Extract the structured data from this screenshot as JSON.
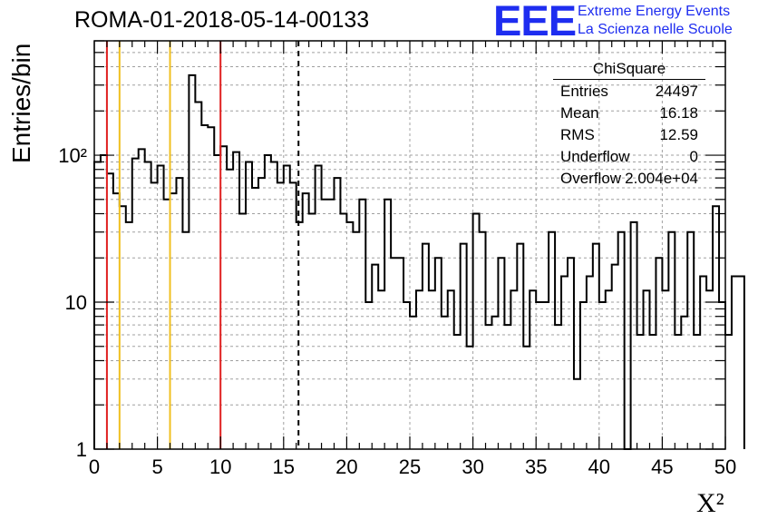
{
  "title": "ROMA-01-2018-05-14-00133",
  "logo": {
    "mark": "EEE",
    "line1": "Extreme Energy Events",
    "line2": "La Scienza nelle Scuole"
  },
  "stats_box": {
    "title": "ChiSquare",
    "rows": [
      {
        "key": "Entries",
        "value": "24497"
      },
      {
        "key": "Mean",
        "value": "16.18"
      },
      {
        "key": "RMS",
        "value": "12.59"
      },
      {
        "key": "Underflow",
        "value": "0"
      },
      {
        "key": "Overflow",
        "value": "2.004e+04"
      }
    ]
  },
  "colors": {
    "histogram": "#000000",
    "red_lines": "#e02020",
    "yellow_lines": "#f0c020",
    "mean_line": "#000000",
    "logo": "#1e2df0",
    "grid": "#a0a0a0"
  },
  "chart_data": {
    "type": "histogram",
    "xlabel": "X²",
    "ylabel": "Entries/bin",
    "xlim": [
      0,
      50
    ],
    "ylim": [
      1,
      600
    ],
    "yscale": "log",
    "grid": true,
    "bin_width": 0.5,
    "bin_start": 0,
    "xticks": [
      0,
      5,
      10,
      15,
      20,
      25,
      30,
      35,
      40,
      45,
      50
    ],
    "xtick_labels": [
      "0",
      "5",
      "10",
      "15",
      "20",
      "25",
      "30",
      "35",
      "40",
      "45",
      "50"
    ],
    "yticks": [
      1,
      10,
      100
    ],
    "ytick_labels": [
      "1",
      "10",
      "10²"
    ],
    "values": [
      90,
      100,
      75,
      55,
      45,
      35,
      95,
      110,
      90,
      65,
      85,
      50,
      55,
      70,
      30,
      350,
      230,
      160,
      155,
      100,
      115,
      80,
      105,
      40,
      90,
      60,
      70,
      100,
      90,
      65,
      85,
      65,
      35,
      55,
      40,
      85,
      50,
      50,
      70,
      40,
      35,
      30,
      50,
      10,
      18,
      12,
      50,
      20,
      20,
      10,
      8,
      12,
      25,
      12,
      20,
      8,
      12,
      6,
      25,
      5,
      40,
      30,
      7,
      8,
      20,
      7,
      12,
      25,
      5,
      12,
      10,
      10,
      30,
      7,
      15,
      20,
      3,
      10,
      15,
      25,
      10,
      12,
      18,
      30,
      1,
      35,
      6,
      12,
      6,
      20,
      12,
      30,
      6,
      8,
      30,
      6,
      15,
      12,
      45,
      10,
      6,
      15,
      15
    ],
    "vlines": [
      {
        "x": 1,
        "style": "red"
      },
      {
        "x": 2,
        "style": "yellow"
      },
      {
        "x": 6,
        "style": "yellow"
      },
      {
        "x": 10,
        "style": "red"
      },
      {
        "x": 16.18,
        "style": "dashed-black"
      }
    ]
  }
}
